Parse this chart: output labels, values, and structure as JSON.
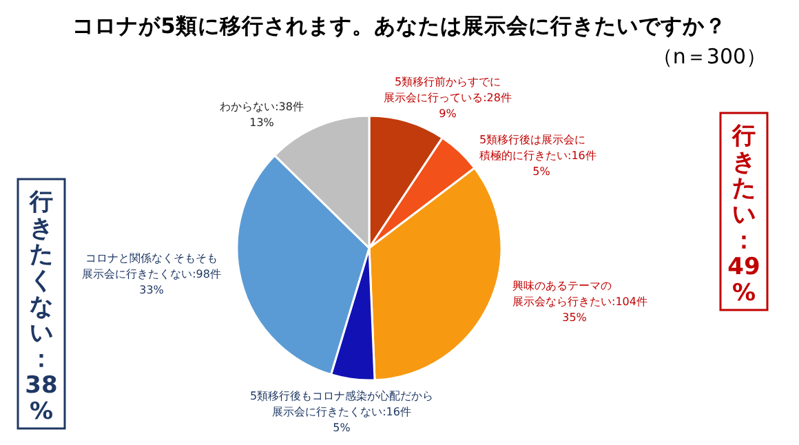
{
  "chart_data": {
    "type": "pie",
    "title": "コロナが5類に移行されます。あなたは展示会に行きたいですか？",
    "subtitle": "（n＝300）",
    "categories": [
      "5類移行前からすでに展示会に行っている",
      "5類移行後は展示会に積極的に行きたい",
      "興味のあるテーマの展示会なら行きたい",
      "5類移行後もコロナ感染が心配だから展示会に行きたくない",
      "コロナと関係なくそもそも展示会に行きたくない",
      "わからない"
    ],
    "values": [
      28,
      16,
      104,
      16,
      98,
      38
    ],
    "value_labels": [
      ":28件\n9%",
      ":16件\n5%",
      ":104件\n35%",
      ":16件\n5%",
      ":98件\n33%",
      ":38件\n13%"
    ],
    "colors": [
      "#c23b0c",
      "#f2511a",
      "#f79a12",
      "#1212b4",
      "#5b9bd5",
      "#bfbfbf"
    ],
    "annotations": [
      "行きたい：49%",
      "行きたくない：38%"
    ]
  }
}
